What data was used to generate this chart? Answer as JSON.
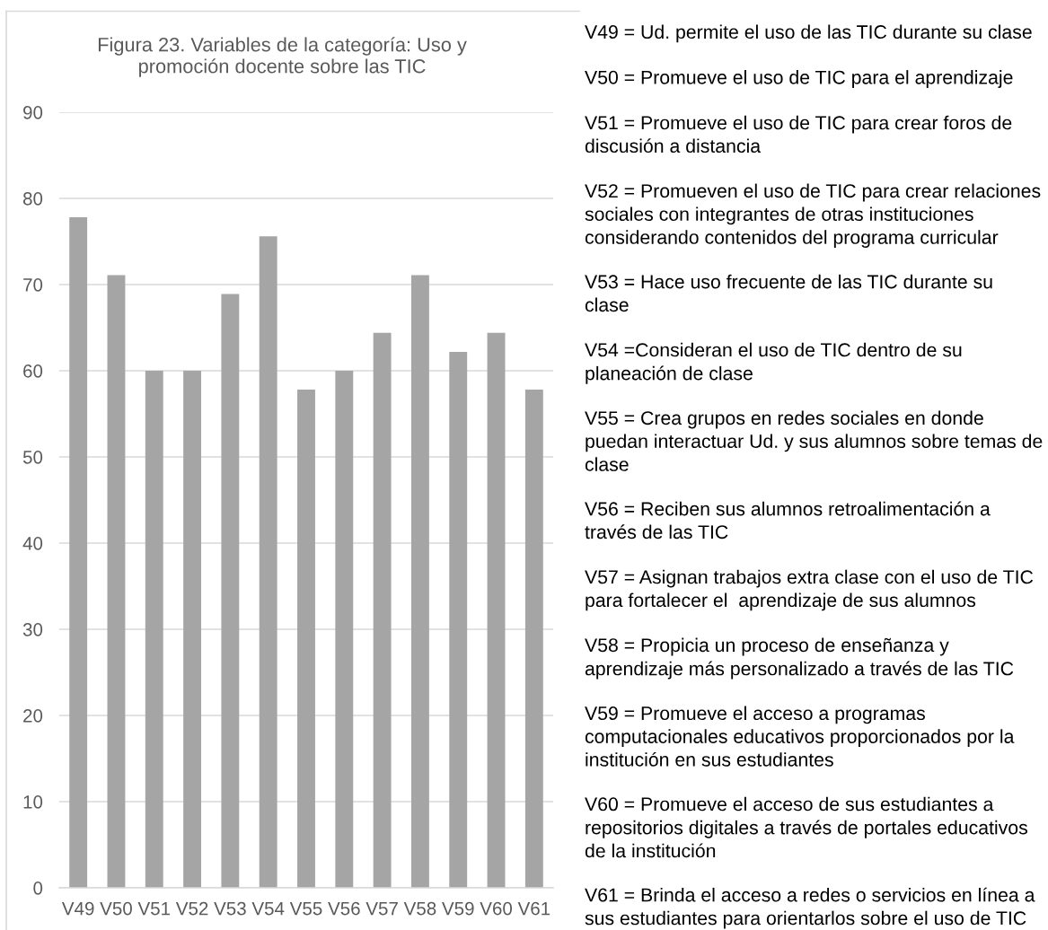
{
  "chart_data": {
    "type": "bar",
    "title": "Figura 23. Variables de la categoría: Uso y\npromoción docente sobre las TIC",
    "categories": [
      "V49",
      "V50",
      "V51",
      "V52",
      "V53",
      "V54",
      "V55",
      "V56",
      "V57",
      "V58",
      "V59",
      "V60",
      "V61"
    ],
    "values": [
      77.8,
      71.1,
      60,
      60,
      68.9,
      75.6,
      57.8,
      60,
      64.4,
      71.1,
      62.2,
      64.4,
      57.8
    ],
    "color": "#a5a5a5",
    "ylim": [
      0,
      90
    ],
    "yticks": [
      0,
      10,
      20,
      30,
      40,
      50,
      60,
      70,
      80,
      90
    ],
    "grid": "y",
    "annotations": [
      "V49 = Ud. permite el uso de las TIC durante su clase",
      "V50 = Promueve el uso de TIC para el aprendizaje",
      "V51 = Promueve el uso de TIC para crear foros de\ndiscusión a distancia",
      "V52 = Promueven el uso de TIC para crear relaciones\nsociales con integrantes de otras instituciones\nconsiderando contenidos del programa curricular",
      "V53 = Hace uso frecuente de las TIC durante su\nclase",
      "V54 =Consideran el uso de TIC dentro de su\nplaneación de clase",
      "V55 = Crea grupos en redes sociales en donde\npuedan interactuar Ud. y sus alumnos sobre temas de\nclase",
      "V56 = Reciben sus alumnos retroalimentación a\ntravés de las TIC",
      "V57 = Asignan trabajos extra clase con el uso de TIC\npara fortalecer el  aprendizaje de sus alumnos",
      "V58 = Propicia un proceso de enseñanza y\naprendizaje más personalizado a través de las TIC",
      "V59 = Promueve el acceso a programas\ncomputacionales educativos proporcionados por la\ninstitución en sus estudiantes",
      "V60 = Promueve el acceso de sus estudiantes a\nrepositorios digitales a través de portales educativos\nde la institución",
      "V61 = Brinda el acceso a redes o servicios en línea a\nsus estudiantes para orientarlos sobre el uso de TIC"
    ]
  }
}
